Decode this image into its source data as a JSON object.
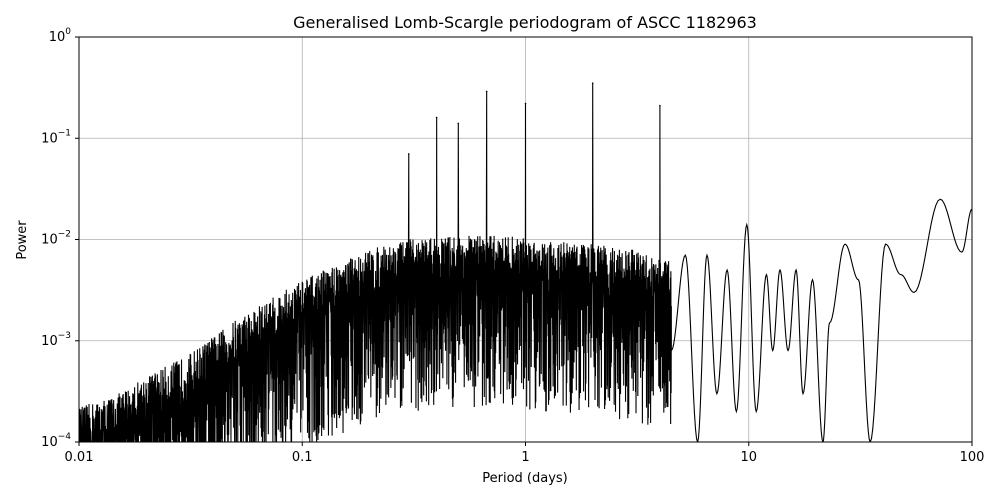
{
  "chart_data": {
    "type": "line",
    "title": "Generalised Lomb-Scargle periodogram of ASCC 1182963",
    "xlabel": "Period (days)",
    "ylabel": "Power",
    "x_scale": "log",
    "y_scale": "log",
    "xlim": [
      0.01,
      100
    ],
    "ylim": [
      0.0001,
      1
    ],
    "grid": true,
    "x_ticks": [
      {
        "value": 0.01,
        "label": "0.01"
      },
      {
        "value": 0.1,
        "label": "0.1"
      },
      {
        "value": 1,
        "label": "1"
      },
      {
        "value": 10,
        "label": "10"
      },
      {
        "value": 100,
        "label": "100"
      }
    ],
    "y_ticks": [
      {
        "value": 0.0001,
        "base": "10",
        "exp": "−4"
      },
      {
        "value": 0.001,
        "base": "10",
        "exp": "−3"
      },
      {
        "value": 0.01,
        "base": "10",
        "exp": "−2"
      },
      {
        "value": 0.1,
        "base": "10",
        "exp": "−1"
      },
      {
        "value": 1,
        "base": "10",
        "exp": "0"
      }
    ],
    "series_color": "#000000",
    "envelope": [
      [
        0.01,
        0.00022
      ],
      [
        0.015,
        0.0003
      ],
      [
        0.02,
        0.00045
      ],
      [
        0.03,
        0.0007
      ],
      [
        0.04,
        0.0011
      ],
      [
        0.05,
        0.0016
      ],
      [
        0.07,
        0.0025
      ],
      [
        0.1,
        0.004
      ],
      [
        0.15,
        0.006
      ],
      [
        0.2,
        0.008
      ],
      [
        0.3,
        0.01
      ],
      [
        0.5,
        0.011
      ],
      [
        0.8,
        0.011
      ],
      [
        1.2,
        0.01
      ],
      [
        2.0,
        0.009
      ],
      [
        3.0,
        0.008
      ],
      [
        4.5,
        0.006
      ]
    ],
    "peaks": [
      {
        "period": 0.3,
        "power": 0.07
      },
      {
        "period": 0.4,
        "power": 0.16
      },
      {
        "period": 0.5,
        "power": 0.14
      },
      {
        "period": 0.67,
        "power": 0.29
      },
      {
        "period": 1.0,
        "power": 0.22
      },
      {
        "period": 2.0,
        "power": 0.35
      },
      {
        "period": 4.0,
        "power": 0.21
      }
    ],
    "smooth_segment": [
      [
        4.5,
        0.0008
      ],
      [
        5.2,
        0.007
      ],
      [
        5.9,
        0.0001
      ],
      [
        6.5,
        0.007
      ],
      [
        7.2,
        0.0003
      ],
      [
        8.0,
        0.005
      ],
      [
        8.8,
        0.0002
      ],
      [
        9.8,
        0.014
      ],
      [
        10.8,
        0.0002
      ],
      [
        12.0,
        0.0045
      ],
      [
        12.8,
        0.0008
      ],
      [
        13.8,
        0.005
      ],
      [
        15.0,
        0.0008
      ],
      [
        16.3,
        0.005
      ],
      [
        17.5,
        0.0003
      ],
      [
        19.3,
        0.004
      ],
      [
        21.5,
        0.0001
      ],
      [
        23.0,
        0.0015
      ],
      [
        27.0,
        0.009
      ],
      [
        31.0,
        0.004
      ],
      [
        35.0,
        0.0001
      ],
      [
        41.0,
        0.009
      ],
      [
        48.0,
        0.0045
      ],
      [
        55.0,
        0.003
      ],
      [
        72.0,
        0.025
      ],
      [
        90.0,
        0.0075
      ],
      [
        100.0,
        0.02
      ]
    ]
  }
}
